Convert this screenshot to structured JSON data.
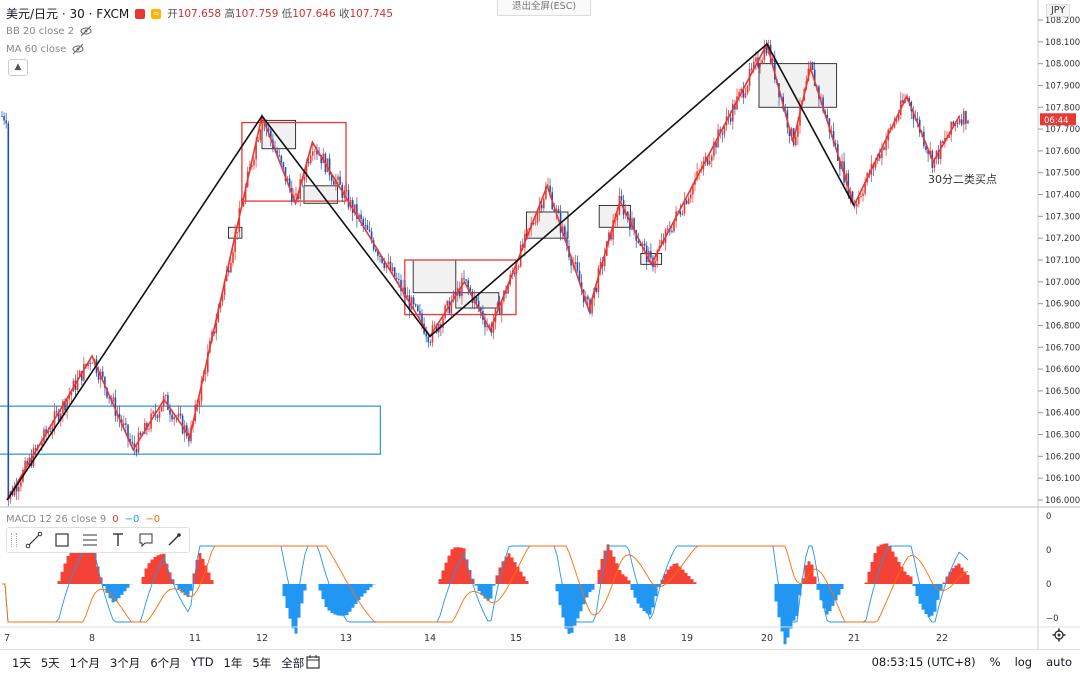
{
  "header": {
    "symbol": "美元/日元 · 30 · FXCM",
    "open_label": "开",
    "open": "107.658",
    "high_label": "高",
    "high": "107.759",
    "low_label": "低",
    "low": "107.646",
    "close_label": "收",
    "close": "107.745",
    "indicator_bb": "BB 20 close 2",
    "indicator_ma": "MA 60 close",
    "indicator_macd": "MACD 12 26 close 9",
    "macd_values": [
      "0",
      "−0",
      "−0"
    ],
    "exit_fullscreen": "退出全屏(ESC)",
    "currency": "JPY"
  },
  "price_tag": "06:44",
  "annotation": "30分二类买点",
  "colors": {
    "up": "#e53935",
    "down": "#1e4fb8",
    "stroke_red": "#e53935",
    "stroke_black": "#111111",
    "box_blue": "#3a9ad9",
    "macd_pos": "#f44336",
    "macd_neg": "#2196f3",
    "macd_line": "#2196f3",
    "signal_line": "#ff6d00"
  },
  "chart_data": {
    "type": "candlestick",
    "y_axis": {
      "min": 106.0,
      "max": 108.2,
      "step": 0.1,
      "ticks": [
        "108.200",
        "108.100",
        "108.000",
        "107.900",
        "107.800",
        "107.700",
        "107.600",
        "107.500",
        "107.400",
        "107.300",
        "107.200",
        "107.100",
        "107.000",
        "106.900",
        "106.800",
        "106.700",
        "106.600",
        "106.500",
        "106.400",
        "106.300",
        "106.200",
        "106.100",
        "106.000"
      ]
    },
    "x_axis": {
      "labels": [
        "7",
        "8",
        "11",
        "12",
        "13",
        "14",
        "15",
        "18",
        "19",
        "20",
        "21",
        "22"
      ]
    },
    "macd_axis": [
      "0",
      "0",
      "0",
      "−0"
    ],
    "bi_black": [
      {
        "x": "7",
        "y": 106.0
      },
      {
        "x": "12",
        "y": 107.76
      },
      {
        "x": "14",
        "y": 106.75
      },
      {
        "x": "20",
        "y": 108.09
      },
      {
        "x": "21",
        "y": 107.35
      }
    ],
    "bi_red": [
      {
        "x": "7",
        "y": 106.0
      },
      {
        "x": "8",
        "y": 106.66
      },
      {
        "x": "8.4",
        "y": 106.23
      },
      {
        "x": "8.7",
        "y": 106.46
      },
      {
        "x": "8.95",
        "y": 106.29
      },
      {
        "x": "12",
        "y": 107.76
      },
      {
        "x": "12.4",
        "y": 107.36
      },
      {
        "x": "12.6",
        "y": 107.64
      },
      {
        "x": "14",
        "y": 106.75
      },
      {
        "x": "14.4",
        "y": 107.0
      },
      {
        "x": "14.7",
        "y": 106.78
      },
      {
        "x": "15.3",
        "y": 107.44
      },
      {
        "x": "15.7",
        "y": 106.87
      },
      {
        "x": "16",
        "y": 107.37
      },
      {
        "x": "16.3",
        "y": 107.08
      },
      {
        "x": "20",
        "y": 108.09
      },
      {
        "x": "20.3",
        "y": 107.64
      },
      {
        "x": "20.5",
        "y": 107.98
      },
      {
        "x": "21",
        "y": 107.35
      },
      {
        "x": "21.6",
        "y": 107.85
      },
      {
        "x": "21.9",
        "y": 107.55
      },
      {
        "x": "22.3",
        "y": 107.76
      }
    ],
    "zhongshu_red": [
      {
        "x1": "11.7",
        "x2": "13",
        "y1": 107.37,
        "y2": 107.73
      },
      {
        "x1": "13.7",
        "x2": "15",
        "y1": 106.85,
        "y2": 107.1
      }
    ],
    "zhongshu_blue": {
      "x1": "6.8",
      "x2": "10.8",
      "y1": 106.21,
      "y2": 106.43
    },
    "zhongshu_gray": [
      {
        "x1": "12",
        "x2": "12.4",
        "y1": 107.61,
        "y2": 107.74
      },
      {
        "x1": "12.5",
        "x2": "12.9",
        "y1": 107.36,
        "y2": 107.44
      },
      {
        "x1": "14.3",
        "x2": "14.8",
        "y1": 106.88,
        "y2": 106.95
      },
      {
        "x1": "15.1",
        "x2": "15.5",
        "y1": 107.2,
        "y2": 107.32
      },
      {
        "x1": "15.8",
        "x2": "16.1",
        "y1": 107.25,
        "y2": 107.35
      },
      {
        "x1": "16.2",
        "x2": "16.4",
        "y1": 107.08,
        "y2": 107.13
      },
      {
        "x1": "19.9",
        "x2": "20.8",
        "y1": 107.8,
        "y2": 108.0
      },
      {
        "x1": "11.5",
        "x2": "11.7",
        "y1": 107.2,
        "y2": 107.25
      },
      {
        "x1": "13.8",
        "x2": "14.3",
        "y1": 106.95,
        "y2": 107.1
      }
    ]
  },
  "range_buttons": [
    "1天",
    "5天",
    "1个月",
    "3个月",
    "6个月",
    "YTD",
    "1年",
    "5年",
    "全部"
  ],
  "footer": {
    "time": "08:53:15 (UTC+8)",
    "percent": "%",
    "log": "log",
    "auto": "auto"
  }
}
